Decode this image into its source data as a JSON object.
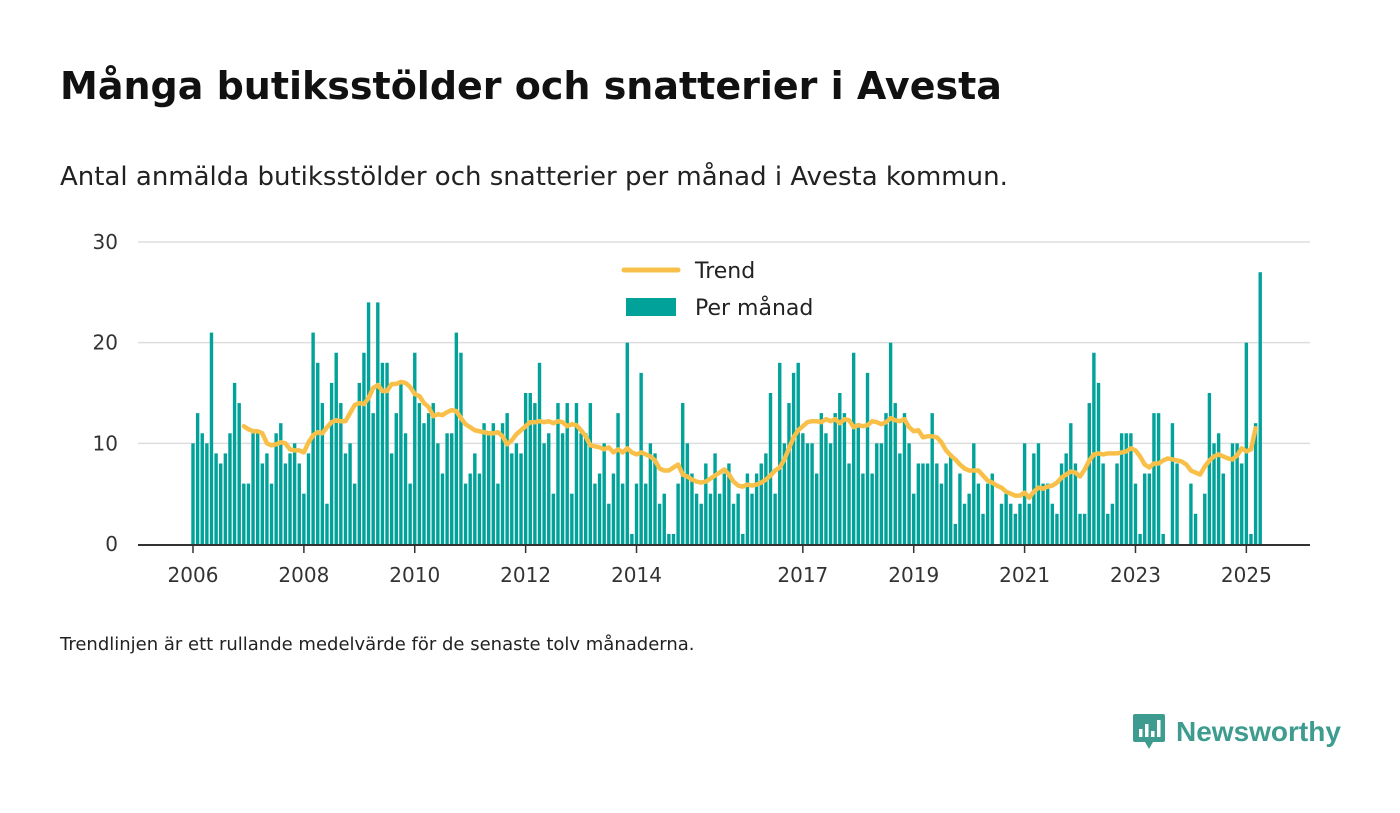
{
  "header": {
    "title": "Många butiksstölder och snatterier i Avesta",
    "subtitle": "Antal anmälda butiksstölder och snatterier per månad i Avesta kommun."
  },
  "footnote": "Trendlinjen är ett rullande medelvärde för de senaste tolv månaderna.",
  "brand": {
    "name": "Newsworthy",
    "icon": "newsworthy-logo-icon"
  },
  "colors": {
    "bar": "#00a29a",
    "trend": "#f8c049",
    "grid": "#dddddd",
    "axis": "#333333",
    "brand": "#3d9c8f"
  },
  "chart_data": {
    "type": "bar",
    "title": "Många butiksstölder och snatterier i Avesta",
    "xlabel": "",
    "ylabel": "",
    "ylim": [
      0,
      30
    ],
    "yticks": [
      0,
      10,
      20,
      30
    ],
    "xticks": [
      "2006",
      "2008",
      "2010",
      "2012",
      "2014",
      "2017",
      "2019",
      "2021",
      "2023",
      "2025"
    ],
    "grid": true,
    "legend": {
      "placement": "top-center",
      "entries": [
        "Trend",
        "Per månad"
      ]
    },
    "start_month": "2006-01",
    "end_month": "2025-03",
    "series": [
      {
        "name": "Per månad",
        "type": "bar",
        "values": [
          10,
          13,
          11,
          10,
          21,
          9,
          8,
          9,
          11,
          16,
          14,
          6,
          6,
          11,
          11,
          8,
          9,
          6,
          11,
          12,
          8,
          9,
          10,
          8,
          5,
          9,
          21,
          18,
          14,
          4,
          16,
          19,
          14,
          9,
          10,
          6,
          16,
          19,
          24,
          13,
          24,
          18,
          18,
          9,
          13,
          16,
          11,
          6,
          19,
          14,
          12,
          13,
          14,
          10,
          7,
          11,
          11,
          21,
          19,
          6,
          7,
          9,
          7,
          12,
          11,
          12,
          6,
          12,
          13,
          9,
          10,
          9,
          15,
          15,
          14,
          18,
          10,
          11,
          5,
          14,
          11,
          14,
          5,
          14,
          11,
          11,
          14,
          6,
          7,
          10,
          4,
          7,
          13,
          6,
          20,
          1,
          6,
          17,
          6,
          10,
          9,
          4,
          5,
          1,
          1,
          6,
          14,
          10,
          7,
          5,
          4,
          8,
          5,
          9,
          5,
          7,
          8,
          4,
          5,
          1,
          7,
          5,
          7,
          8,
          9,
          15,
          5,
          18,
          10,
          14,
          17,
          18,
          11,
          10,
          10,
          7,
          13,
          11,
          10,
          13,
          15,
          13,
          8,
          19,
          12,
          7,
          17,
          7,
          10,
          10,
          13,
          20,
          14,
          9,
          13,
          10,
          5,
          8,
          8,
          8,
          13,
          8,
          6,
          8,
          9,
          2,
          7,
          4,
          5,
          10,
          6,
          3,
          6,
          7,
          0,
          4,
          5,
          4,
          3,
          4,
          10,
          4,
          9,
          10,
          6,
          6,
          4,
          3,
          8,
          9,
          12,
          8,
          3,
          3,
          14,
          19,
          16,
          8,
          3,
          4,
          8,
          11,
          11,
          11,
          6,
          1,
          7,
          7,
          13,
          13,
          1,
          0,
          12,
          8,
          0,
          0,
          6,
          3,
          0,
          5,
          15,
          10,
          11,
          7,
          0,
          10,
          10,
          8,
          20,
          1,
          12,
          27
        ]
      },
      {
        "name": "Trend",
        "type": "line",
        "start_month": "2006-12",
        "values": [
          11.7,
          11.4,
          11.2,
          11.2,
          11.0,
          10.0,
          9.8,
          9.9,
          10.1,
          10.0,
          9.4,
          9.3,
          9.3,
          9.1,
          10.1,
          10.8,
          11.1,
          11.0,
          11.6,
          12.1,
          12.3,
          12.2,
          12.2,
          13.0,
          13.8,
          14.0,
          13.9,
          14.5,
          15.5,
          15.8,
          15.2,
          15.2,
          15.9,
          15.9,
          16.1,
          16.0,
          15.6,
          14.9,
          14.7,
          14.0,
          13.6,
          12.7,
          12.9,
          12.8,
          13.1,
          13.3,
          13.2,
          12.5,
          11.9,
          11.6,
          11.3,
          11.2,
          11.1,
          11.0,
          11.0,
          11.1,
          10.7,
          9.9,
          10.3,
          10.9,
          11.3,
          11.7,
          12.1,
          12.1,
          12.2,
          12.1,
          12.2,
          12.0,
          12.2,
          12.1,
          11.7,
          11.9,
          11.8,
          11.3,
          10.7,
          9.8,
          9.7,
          9.6,
          9.4,
          9.6,
          9.1,
          9.4,
          9.1,
          9.5,
          9.1,
          8.9,
          9.1,
          8.9,
          8.7,
          8.3,
          7.5,
          7.3,
          7.3,
          7.6,
          7.9,
          6.9,
          6.7,
          6.4,
          6.2,
          6.1,
          6.2,
          6.5,
          6.8,
          7.1,
          7.4,
          6.9,
          6.2,
          5.8,
          5.7,
          5.9,
          5.8,
          5.9,
          6.1,
          6.4,
          6.8,
          7.3,
          7.6,
          8.4,
          9.5,
          10.6,
          11.3,
          11.7,
          12.1,
          12.2,
          12.2,
          12.1,
          12.4,
          12.2,
          12.4,
          12.0,
          12.4,
          12.3,
          11.6,
          11.8,
          11.7,
          11.8,
          12.2,
          12.1,
          11.9,
          12.1,
          12.5,
          12.3,
          12.2,
          12.4,
          11.6,
          11.2,
          11.3,
          10.6,
          10.7,
          10.7,
          10.6,
          10.1,
          9.3,
          8.8,
          8.4,
          7.9,
          7.5,
          7.3,
          7.3,
          7.3,
          6.8,
          6.3,
          6.1,
          5.8,
          5.6,
          5.2,
          5.0,
          4.8,
          4.8,
          5.1,
          4.6,
          5.2,
          5.6,
          5.5,
          5.7,
          5.8,
          6.1,
          6.6,
          6.9,
          7.2,
          7.1,
          6.7,
          7.4,
          8.3,
          8.9,
          9.0,
          8.9,
          9.0,
          9.0,
          9.0,
          9.1,
          9.2,
          9.5,
          9.3,
          8.7,
          7.9,
          7.6,
          8.0,
          8.0,
          8.3,
          8.5,
          8.4,
          8.3,
          8.2,
          7.9,
          7.3,
          7.1,
          6.9,
          7.7,
          8.3,
          8.7,
          8.9,
          8.7,
          8.5,
          8.4,
          8.8,
          9.5,
          9.2,
          9.4,
          11.5
        ]
      }
    ]
  }
}
